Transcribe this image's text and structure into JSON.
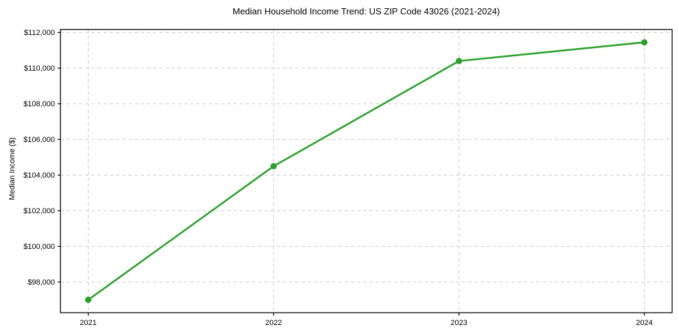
{
  "chart_data": {
    "type": "line",
    "title": "Median Household Income Trend: US ZIP Code 43026 (2021-2024)",
    "xlabel": "",
    "ylabel": "Median Income ($)",
    "x": [
      2021,
      2022,
      2023,
      2024
    ],
    "x_tick_labels": [
      "2021",
      "2022",
      "2023",
      "2024"
    ],
    "series": [
      {
        "name": "median_household_income",
        "values": [
          97000,
          104500,
          110400,
          111450
        ]
      }
    ],
    "yticks": [
      98000,
      100000,
      102000,
      104000,
      106000,
      108000,
      110000,
      112000
    ],
    "ytick_labels": [
      "$98,000",
      "$100,000",
      "$102,000",
      "$104,000",
      "$106,000",
      "$108,000",
      "$110,000",
      "$112,000"
    ],
    "xlim": [
      2020.85,
      2024.15
    ],
    "ylim": [
      96280,
      112170
    ],
    "grid": true,
    "grid_style": "dashed",
    "legend_position": "none",
    "marker": "circle",
    "colors": {
      "line": "#2ca02c",
      "marker": "#2ca02c",
      "grid": "#cccccc",
      "axis": "#000000",
      "text": "#000000",
      "background": "#ffffff"
    }
  }
}
